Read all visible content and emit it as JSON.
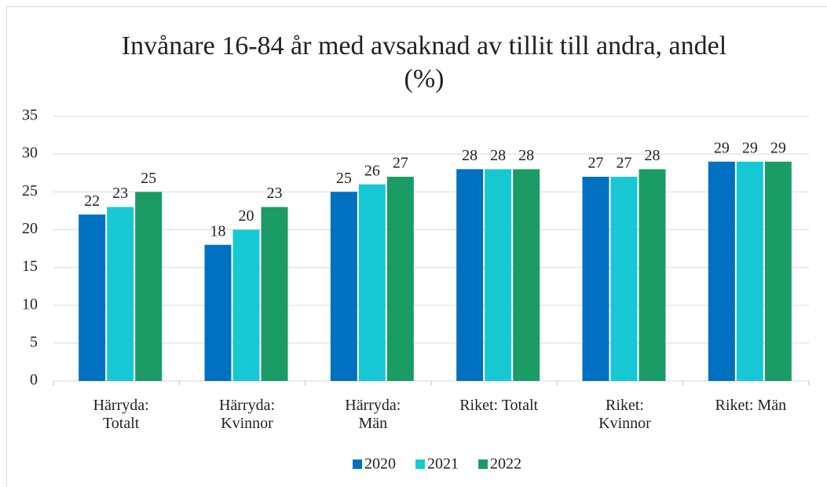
{
  "chart_data": {
    "type": "bar",
    "title": "Invånare 16-84 år med avsaknad av tillit till andra, andel (%)",
    "categories": [
      "Härryda: Totalt",
      "Härryda: Kvinnor",
      "Härryda: Män",
      "Riket: Totalt",
      "Riket: Kvinnor",
      "Riket: Män"
    ],
    "series": [
      {
        "name": "2020",
        "color": "#0070c0",
        "values": [
          22,
          18,
          25,
          28,
          27,
          29
        ]
      },
      {
        "name": "2021",
        "color": "#17c8d4",
        "values": [
          23,
          20,
          26,
          28,
          27,
          29
        ]
      },
      {
        "name": "2022",
        "color": "#1a9c64",
        "values": [
          25,
          23,
          27,
          28,
          28,
          29
        ]
      }
    ],
    "ylim": [
      0,
      35
    ],
    "yticks": [
      0,
      5,
      10,
      15,
      20,
      25,
      30,
      35
    ],
    "grid": true,
    "legend": "bottom"
  }
}
